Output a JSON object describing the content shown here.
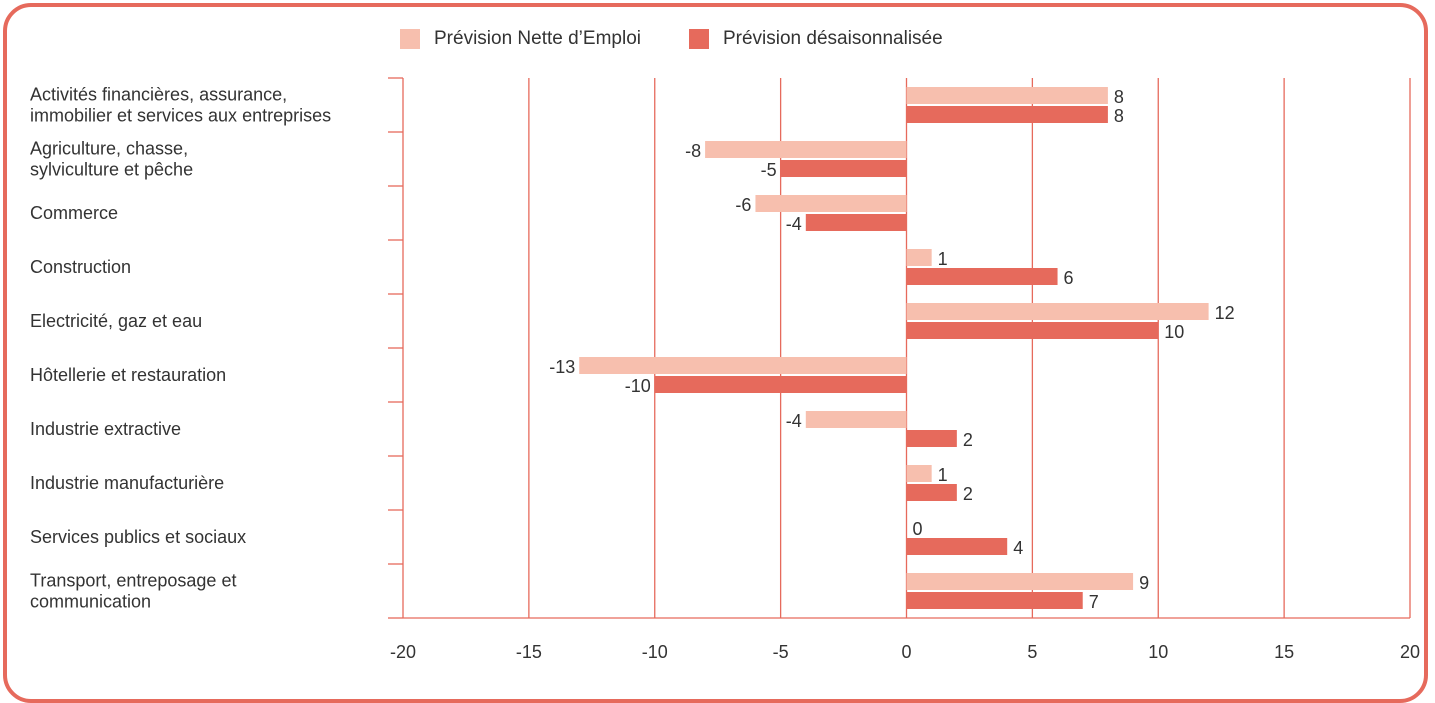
{
  "colors": {
    "frame": "#e66a5c",
    "grid": "#e66a5c",
    "series_light": "#f7bfae",
    "series_dark": "#e66a5c"
  },
  "chart_data": {
    "type": "bar",
    "orientation": "horizontal",
    "categories": [
      [
        "Activités financières, assurance,",
        "immobilier et services aux entreprises"
      ],
      [
        "Agriculture, chasse,",
        "sylviculture et pêche"
      ],
      [
        "Commerce"
      ],
      [
        "Construction"
      ],
      [
        "Electricité, gaz et eau"
      ],
      [
        "Hôtellerie et restauration"
      ],
      [
        "Industrie extractive"
      ],
      [
        "Industrie manufacturière"
      ],
      [
        "Services publics et sociaux"
      ],
      [
        "Transport, entreposage et",
        "communication"
      ]
    ],
    "series": [
      {
        "name": "Prévision Nette d’Emploi",
        "color": "#f7bfae",
        "values": [
          8,
          -8,
          -6,
          1,
          12,
          -13,
          -4,
          1,
          0,
          9
        ]
      },
      {
        "name": "Prévision désaisonnalisée",
        "color": "#e66a5c",
        "values": [
          8,
          -5,
          -4,
          6,
          10,
          -10,
          2,
          2,
          4,
          7
        ]
      }
    ],
    "xlim": [
      -20,
      20
    ],
    "xticks": [
      -20,
      -15,
      -10,
      -5,
      0,
      5,
      10,
      15,
      20
    ],
    "grid": true,
    "legend": "top-center"
  }
}
